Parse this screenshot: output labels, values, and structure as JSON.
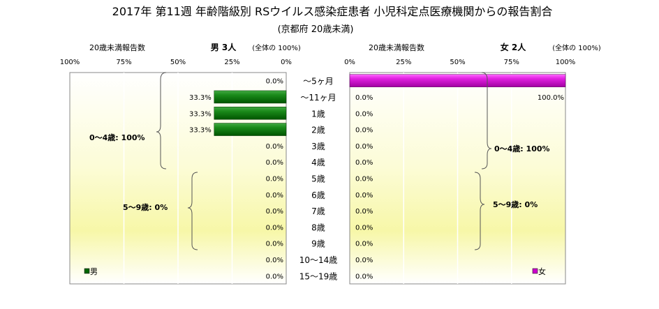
{
  "title": "2017年 第11週 年齢階級別 RSウイルス感染症患者 小児科定点医療機関からの報告割合",
  "subtitle": "(京都府 20歳未満)",
  "chart_data": [
    {
      "type": "bar",
      "panel": "male",
      "orientation": "horizontal-reversed",
      "header_left": "20歳未満報告数",
      "header_count": "男 3人",
      "header_scale": "(全体の 100%)",
      "legend": "男",
      "color": "#006600",
      "categories": [
        "～5ヶ月",
        "～11ヶ月",
        "1歳",
        "2歳",
        "3歳",
        "4歳",
        "5歳",
        "6歳",
        "7歳",
        "8歳",
        "9歳",
        "10～14歳",
        "15～19歳"
      ],
      "values": [
        0.0,
        33.3,
        33.3,
        33.3,
        0.0,
        0.0,
        0.0,
        0.0,
        0.0,
        0.0,
        0.0,
        0.0,
        0.0
      ],
      "value_labels": [
        "0.0%",
        "33.3%",
        "33.3%",
        "33.3%",
        "0.0%",
        "0.0%",
        "0.0%",
        "0.0%",
        "0.0%",
        "0.0%",
        "0.0%",
        "0.0%",
        "0.0%"
      ],
      "xticks": [
        "100%",
        "75%",
        "50%",
        "25%",
        "0%"
      ],
      "xlim": [
        0,
        100
      ],
      "groups": [
        "0～4歳: 100%",
        "5～9歳: 0%"
      ]
    },
    {
      "type": "bar",
      "panel": "female",
      "orientation": "horizontal",
      "header_left": "20歳未満報告数",
      "header_count": "女 2人",
      "header_scale": "(全体の 100%)",
      "legend": "女",
      "color": "#cc00cc",
      "categories": [
        "～5ヶ月",
        "～11ヶ月",
        "1歳",
        "2歳",
        "3歳",
        "4歳",
        "5歳",
        "6歳",
        "7歳",
        "8歳",
        "9歳",
        "10～14歳",
        "15～19歳"
      ],
      "values": [
        100.0,
        0.0,
        0.0,
        0.0,
        0.0,
        0.0,
        0.0,
        0.0,
        0.0,
        0.0,
        0.0,
        0.0,
        0.0
      ],
      "value_labels": [
        "100.0%",
        "0.0%",
        "0.0%",
        "0.0%",
        "0.0%",
        "0.0%",
        "0.0%",
        "0.0%",
        "0.0%",
        "0.0%",
        "0.0%",
        "0.0%",
        "0.0%"
      ],
      "xticks": [
        "0%",
        "25%",
        "50%",
        "75%",
        "100%"
      ],
      "xlim": [
        0,
        100
      ],
      "groups": [
        "0～4歳: 100%",
        "5～9歳: 0%"
      ]
    }
  ]
}
